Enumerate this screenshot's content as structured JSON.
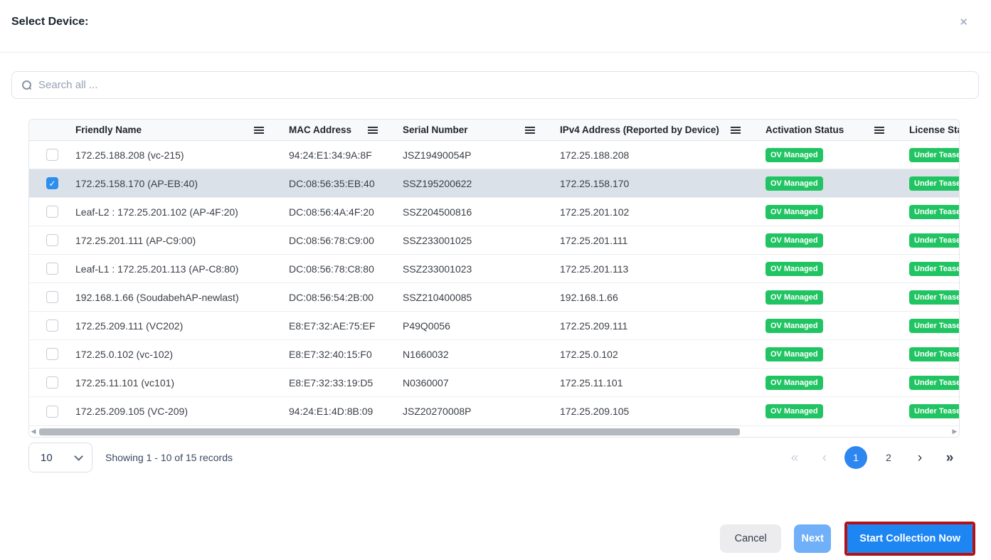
{
  "modal": {
    "title": "Select Device:"
  },
  "search": {
    "placeholder": "Search all ..."
  },
  "table": {
    "columns": [
      "Friendly Name",
      "MAC Address",
      "Serial Number",
      "IPv4 Address (Reported by Device)",
      "Activation Status",
      "License Stat"
    ],
    "rows": [
      {
        "checked": false,
        "friendly_name": "172.25.188.208 (vc-215)",
        "mac": "94:24:E1:34:9A:8F",
        "serial": "JSZ19490054P",
        "ipv4": "172.25.188.208",
        "activation": "OV Managed",
        "license": "Under Teaser"
      },
      {
        "checked": true,
        "friendly_name": "172.25.158.170 (AP-EB:40)",
        "mac": "DC:08:56:35:EB:40",
        "serial": "SSZ195200622",
        "ipv4": "172.25.158.170",
        "activation": "OV Managed",
        "license": "Under Teaser"
      },
      {
        "checked": false,
        "friendly_name": "Leaf-L2 : 172.25.201.102 (AP-4F:20)",
        "mac": "DC:08:56:4A:4F:20",
        "serial": "SSZ204500816",
        "ipv4": "172.25.201.102",
        "activation": "OV Managed",
        "license": "Under Teaser"
      },
      {
        "checked": false,
        "friendly_name": "172.25.201.111 (AP-C9:00)",
        "mac": "DC:08:56:78:C9:00",
        "serial": "SSZ233001025",
        "ipv4": "172.25.201.111",
        "activation": "OV Managed",
        "license": "Under Teaser"
      },
      {
        "checked": false,
        "friendly_name": "Leaf-L1 : 172.25.201.113 (AP-C8:80)",
        "mac": "DC:08:56:78:C8:80",
        "serial": "SSZ233001023",
        "ipv4": "172.25.201.113",
        "activation": "OV Managed",
        "license": "Under Teaser"
      },
      {
        "checked": false,
        "friendly_name": "192.168.1.66 (SoudabehAP-newlast)",
        "mac": "DC:08:56:54:2B:00",
        "serial": "SSZ210400085",
        "ipv4": "192.168.1.66",
        "activation": "OV Managed",
        "license": "Under Teaser"
      },
      {
        "checked": false,
        "friendly_name": "172.25.209.111 (VC202)",
        "mac": "E8:E7:32:AE:75:EF",
        "serial": "P49Q0056",
        "ipv4": "172.25.209.111",
        "activation": "OV Managed",
        "license": "Under Teaser"
      },
      {
        "checked": false,
        "friendly_name": "172.25.0.102 (vc-102)",
        "mac": "E8:E7:32:40:15:F0",
        "serial": "N1660032",
        "ipv4": "172.25.0.102",
        "activation": "OV Managed",
        "license": "Under Teaser"
      },
      {
        "checked": false,
        "friendly_name": "172.25.11.101 (vc101)",
        "mac": "E8:E7:32:33:19:D5",
        "serial": "N0360007",
        "ipv4": "172.25.11.101",
        "activation": "OV Managed",
        "license": "Under Teaser"
      },
      {
        "checked": false,
        "friendly_name": "172.25.209.105 (VC-209)",
        "mac": "94:24:E1:4D:8B:09",
        "serial": "JSZ20270008P",
        "ipv4": "172.25.209.105",
        "activation": "OV Managed",
        "license": "Under Teaser"
      }
    ]
  },
  "pagination": {
    "page_size": "10",
    "summary": "Showing 1 - 10 of 15 records",
    "first_icon": "«",
    "prev_icon": "‹",
    "next_icon": "›",
    "last_icon": "»",
    "pages": [
      "1",
      "2"
    ],
    "active_page": "1"
  },
  "footer": {
    "cancel_label": "Cancel",
    "next_label": "Next",
    "start_label": "Start Collection Now"
  },
  "colors": {
    "badge_green": "#21c462",
    "accent_blue": "#2e86f0",
    "highlight_red": "#b11218"
  }
}
